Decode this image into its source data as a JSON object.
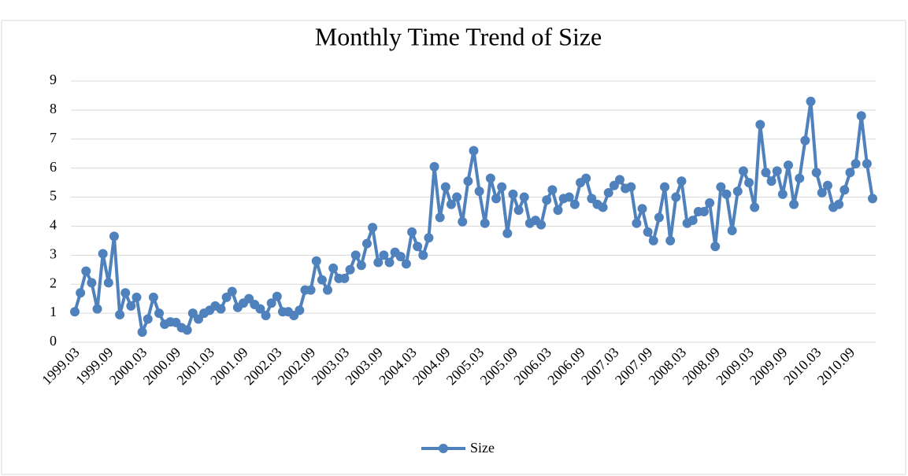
{
  "chart_data": {
    "type": "line",
    "title": "Monthly Time Trend of Size",
    "categories": [
      "1999.03",
      null,
      null,
      null,
      null,
      null,
      "1999.09",
      null,
      null,
      null,
      null,
      null,
      "2000.03",
      null,
      null,
      null,
      null,
      null,
      "2000.09",
      null,
      null,
      null,
      null,
      null,
      "2001.03",
      null,
      null,
      null,
      null,
      null,
      "2001.09",
      null,
      null,
      null,
      null,
      null,
      "2002.03",
      null,
      null,
      null,
      null,
      null,
      "2002.09",
      null,
      null,
      null,
      null,
      null,
      "2003.03",
      null,
      null,
      null,
      null,
      null,
      "2003.09",
      null,
      null,
      null,
      null,
      null,
      "2004.03",
      null,
      null,
      null,
      null,
      null,
      "2004.09",
      null,
      null,
      null,
      null,
      null,
      "2005.03",
      null,
      null,
      null,
      null,
      null,
      "2005.09",
      null,
      null,
      null,
      null,
      null,
      "2006.03",
      null,
      null,
      null,
      null,
      null,
      "2006.09",
      null,
      null,
      null,
      null,
      null,
      "2007.03",
      null,
      null,
      null,
      null,
      null,
      "2007.09",
      null,
      null,
      null,
      null,
      null,
      "2008.03",
      null,
      null,
      null,
      null,
      null,
      "2008.09",
      null,
      null,
      null,
      null,
      null,
      "2009.03",
      null,
      null,
      null,
      null,
      null,
      "2009.09",
      null,
      null,
      null,
      null,
      null,
      "2010.03",
      null,
      null,
      null,
      null,
      null,
      "2010.09",
      null,
      null,
      null,
      null
    ],
    "series": [
      {
        "name": "Size",
        "color": "#4f81bd",
        "values": [
          1.05,
          1.7,
          2.45,
          2.05,
          1.15,
          3.05,
          2.05,
          3.65,
          0.95,
          1.7,
          1.25,
          1.55,
          0.35,
          0.8,
          1.55,
          1.0,
          0.62,
          0.7,
          0.68,
          0.5,
          0.42,
          1.0,
          0.8,
          1.0,
          1.1,
          1.25,
          1.15,
          1.55,
          1.75,
          1.2,
          1.35,
          1.5,
          1.3,
          1.15,
          0.92,
          1.35,
          1.58,
          1.05,
          1.05,
          0.92,
          1.1,
          1.8,
          1.8,
          2.8,
          2.15,
          1.8,
          2.55,
          2.2,
          2.2,
          2.5,
          3.0,
          2.65,
          3.4,
          3.95,
          2.75,
          3.0,
          2.75,
          3.1,
          2.95,
          2.7,
          3.8,
          3.3,
          3.0,
          3.6,
          6.05,
          4.3,
          5.35,
          4.75,
          5.0,
          4.15,
          5.55,
          6.6,
          5.2,
          4.1,
          5.65,
          4.95,
          5.35,
          3.75,
          5.1,
          4.55,
          5.0,
          4.1,
          4.2,
          4.05,
          4.9,
          5.25,
          4.55,
          4.95,
          5.0,
          4.75,
          5.5,
          5.65,
          4.95,
          4.75,
          4.65,
          5.15,
          5.4,
          5.6,
          5.3,
          5.35,
          4.1,
          4.6,
          3.8,
          3.5,
          4.3,
          5.35,
          3.5,
          5.0,
          5.55,
          4.1,
          4.2,
          4.5,
          4.5,
          4.8,
          3.3,
          5.35,
          5.1,
          3.85,
          5.2,
          5.9,
          5.5,
          4.65,
          7.5,
          5.85,
          5.55,
          5.9,
          5.1,
          6.1,
          4.75,
          5.65,
          6.95,
          8.3,
          5.85,
          5.15,
          5.4,
          4.65,
          4.75,
          5.25,
          5.85,
          6.15,
          7.8,
          6.15,
          4.95
        ]
      }
    ],
    "ylim": [
      0,
      9
    ],
    "yticks": [
      0,
      1,
      2,
      3,
      4,
      5,
      6,
      7,
      8,
      9
    ],
    "grid": true,
    "legend": "bottom"
  }
}
